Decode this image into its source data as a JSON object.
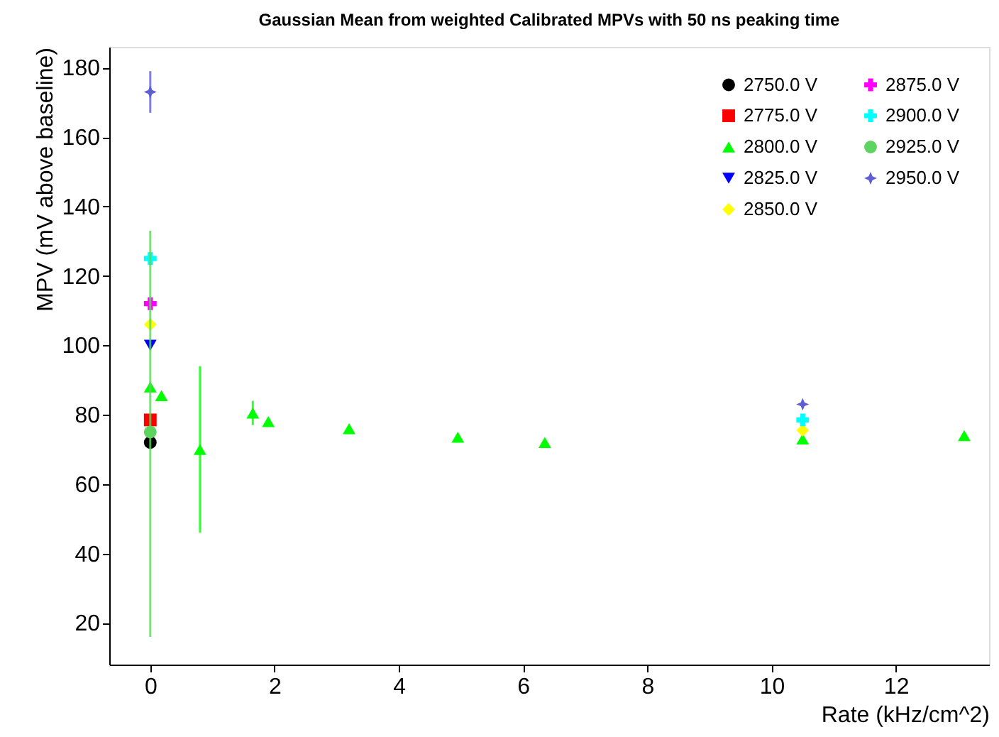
{
  "chart_data": {
    "type": "scatter",
    "title": "Gaussian Mean from weighted Calibrated MPVs with 50 ns peaking time",
    "xlabel": "Rate (kHz/cm^2)",
    "ylabel": "MPV (mV above baseline)",
    "xlim": [
      -0.66,
      13.5
    ],
    "ylim": [
      8,
      186
    ],
    "xticks": [
      0,
      2,
      4,
      6,
      8,
      10,
      12
    ],
    "yticks": [
      20,
      40,
      60,
      80,
      100,
      120,
      140,
      160,
      180
    ],
    "grid": false,
    "legend": "top right",
    "series": [
      {
        "name": "2750.0 V",
        "color": "#000000",
        "marker": "circle",
        "x": [
          0
        ],
        "values": [
          72
        ]
      },
      {
        "name": "2775.0 V",
        "color": "#ff0000",
        "marker": "square",
        "x": [
          0
        ],
        "values": [
          78.5
        ]
      },
      {
        "name": "2800.0 V",
        "color": "#00ff00",
        "marker": "triangle",
        "x": [
          0,
          0.18,
          0.8,
          1.65,
          1.9,
          3.2,
          4.95,
          6.35,
          10.5,
          13.1
        ],
        "values": [
          88,
          85.5,
          70,
          80.5,
          78,
          76,
          73.5,
          72,
          73,
          74
        ],
        "errors": [
          null,
          null,
          [
            46,
            94
          ],
          [
            77,
            84
          ],
          null,
          null,
          null,
          null,
          null,
          null
        ]
      },
      {
        "name": "2825.0 V",
        "color": "#0000ff",
        "marker": "triangle-down",
        "x": [
          0
        ],
        "values": [
          100
        ]
      },
      {
        "name": "2850.0 V",
        "color": "#ffff00",
        "marker": "diamond",
        "x": [
          0,
          10.5
        ],
        "values": [
          106,
          75.5
        ]
      },
      {
        "name": "2875.0 V",
        "color": "#ff00ff",
        "marker": "cross",
        "x": [
          0
        ],
        "values": [
          112
        ]
      },
      {
        "name": "2900.0 V",
        "color": "#00ffff",
        "marker": "cross",
        "x": [
          0,
          10.5
        ],
        "values": [
          125,
          78.5
        ]
      },
      {
        "name": "2925.0 V",
        "color": "#5fd35f",
        "marker": "circle",
        "x": [
          0
        ],
        "values": [
          75
        ],
        "errors": [
          [
            16,
            133
          ]
        ]
      },
      {
        "name": "2950.0 V",
        "color": "#5f5fd3",
        "marker": "star",
        "x": [
          0,
          10.5
        ],
        "values": [
          173,
          83
        ],
        "errors": [
          [
            167,
            179
          ],
          null
        ]
      }
    ]
  }
}
